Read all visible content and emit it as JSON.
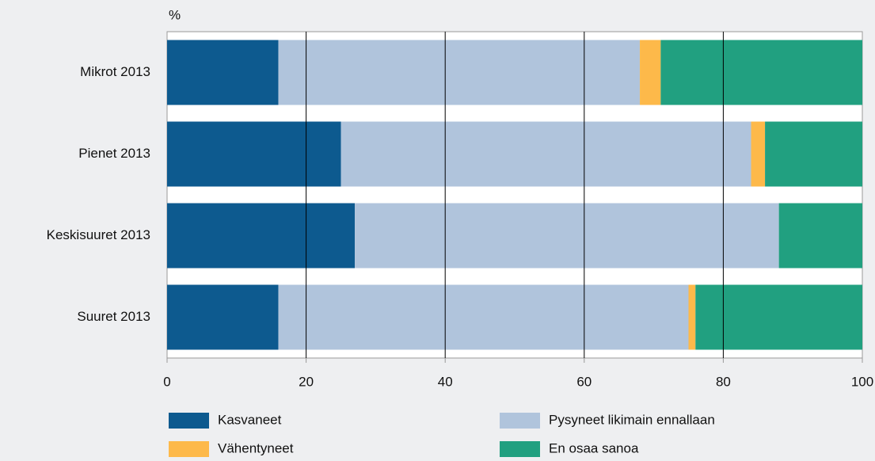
{
  "chart_data": {
    "type": "stacked-bar-horizontal",
    "axis_label": "%",
    "categories": [
      "Mikrot 2013",
      "Pienet 2013",
      "Keskisuuret 2013",
      "Suuret 2013"
    ],
    "series": [
      {
        "name": "Kasvaneet",
        "color": "#0d5a8f",
        "values": [
          16,
          25,
          27,
          16
        ]
      },
      {
        "name": "Pysyneet likimain ennallaan",
        "color": "#b0c4dc",
        "values": [
          52,
          59,
          61,
          59
        ]
      },
      {
        "name": "Vähentyneet",
        "color": "#fdb94a",
        "values": [
          3,
          2,
          0,
          1
        ]
      },
      {
        "name": "En osaa sanoa",
        "color": "#21a080",
        "values": [
          29,
          14,
          12,
          24
        ]
      }
    ],
    "xlim": [
      0,
      100
    ],
    "xticks": [
      0,
      20,
      40,
      60,
      80,
      100
    ],
    "grid": true,
    "legend": "bottom"
  }
}
